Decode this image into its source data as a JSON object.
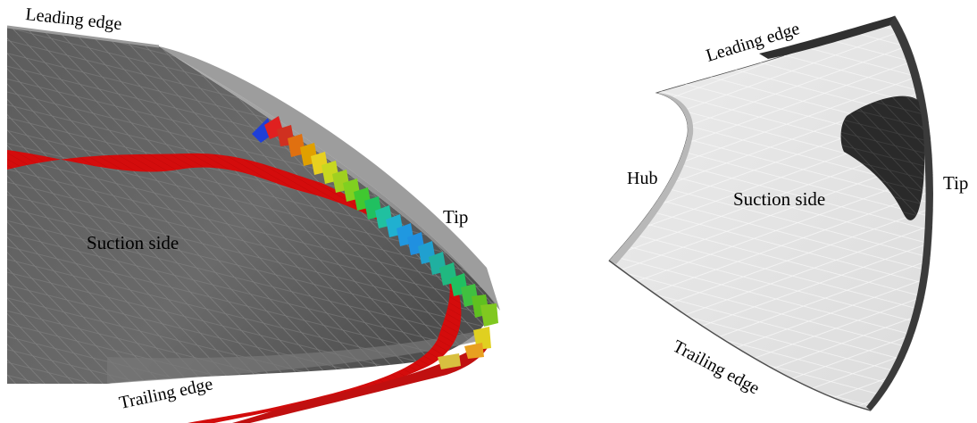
{
  "left_panel": {
    "labels": {
      "leading_edge": "Leading edge",
      "suction_side": "Suction side",
      "tip": "Tip",
      "trailing_edge": "Trailing edge"
    },
    "colors": {
      "blade_surface": "#6b6b6b",
      "blade_dark": "#555555",
      "tip_surface": "#9a9a9a",
      "vortex_ribbon": "#d40c0c",
      "vortex_ribbon_edge": "#8a0000"
    },
    "tip_vortex_colormap": [
      "#1f3fd8",
      "#e02020",
      "#e0a000",
      "#e8e020",
      "#80d020",
      "#20c040",
      "#20c0a0",
      "#20a8e0",
      "#2090e0",
      "#20b0a0",
      "#20c060",
      "#60c020"
    ]
  },
  "right_panel": {
    "labels": {
      "leading_edge": "Leading edge",
      "hub": "Hub",
      "suction_side": "Suction side",
      "tip": "Tip",
      "trailing_edge": "Trailing edge"
    },
    "colors": {
      "blade_surface": "#e6e6e6",
      "cavity_region": "#2a2a2a",
      "edge": "#404040"
    }
  }
}
